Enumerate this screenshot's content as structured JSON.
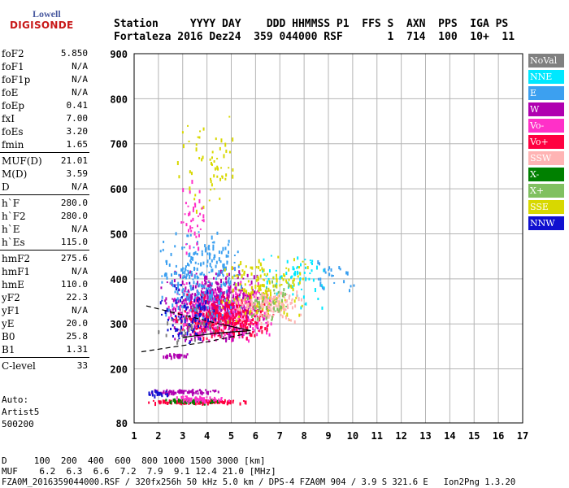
{
  "logo": {
    "line1": "Lowell",
    "line2": "DIGISONDE"
  },
  "header": {
    "labels": "Station     YYYY DAY    DDD HHMMSS P1  FFS S  AXN  PPS  IGA PS",
    "values": "Fortaleza 2016 Dez24  359 044000 RSF       1  714  100  10+  11"
  },
  "params": [
    {
      "k": "foF2",
      "v": "5.850"
    },
    {
      "k": "foF1",
      "v": "N/A"
    },
    {
      "k": "foF1p",
      "v": "N/A"
    },
    {
      "k": "foE",
      "v": "N/A"
    },
    {
      "k": "foEp",
      "v": "0.41"
    },
    {
      "k": "fxI",
      "v": "7.00"
    },
    {
      "k": "foEs",
      "v": "3.20"
    },
    {
      "k": "fmin",
      "v": "1.65"
    }
  ],
  "params2": [
    {
      "k": "MUF(D)",
      "v": "21.01"
    },
    {
      "k": "M(D)",
      "v": "3.59"
    },
    {
      "k": "D",
      "v": "N/A"
    }
  ],
  "params3": [
    {
      "k": "h`F",
      "v": "280.0"
    },
    {
      "k": "h`F2",
      "v": "280.0"
    },
    {
      "k": "h`E",
      "v": "N/A"
    },
    {
      "k": "h`Es",
      "v": "115.0"
    }
  ],
  "params4": [
    {
      "k": "hmF2",
      "v": "275.6"
    },
    {
      "k": "hmF1",
      "v": "N/A"
    },
    {
      "k": "hmE",
      "v": "110.0"
    },
    {
      "k": "yF2",
      "v": "22.3"
    },
    {
      "k": "yF1",
      "v": "N/A"
    },
    {
      "k": "yE",
      "v": "20.0"
    },
    {
      "k": "B0",
      "v": "25.8"
    },
    {
      "k": "B1",
      "v": "1.31"
    }
  ],
  "params5": [
    {
      "k": "C-level",
      "v": "33"
    }
  ],
  "auto": [
    "Auto:",
    "Artist5",
    "500200"
  ],
  "legend": [
    {
      "name": "NoVal",
      "color": "#808080"
    },
    {
      "name": "NNE",
      "color": "#00e8ff"
    },
    {
      "name": "E",
      "color": "#3ca0f0"
    },
    {
      "name": "W",
      "color": "#b000b0"
    },
    {
      "name": "Vo-",
      "color": "#ff30c8"
    },
    {
      "name": "Vo+",
      "color": "#ff0040"
    },
    {
      "name": "SSW",
      "color": "#ffb4b4"
    },
    {
      "name": "X-",
      "color": "#008000"
    },
    {
      "name": "X+",
      "color": "#80c060"
    },
    {
      "name": "SSE",
      "color": "#d8d800"
    },
    {
      "name": "NNW",
      "color": "#1010d0"
    }
  ],
  "footer": {
    "d_row": "D     100  200  400  600  800 1000 1500 3000 [km]",
    "muf_row": "MUF    6.2  6.3  6.6  7.2  7.9  9.1 12.4 21.0 [MHz]",
    "file_row": "FZA0M_2016359044000.RSF / 320fx256h 50 kHz 5.0 km / DPS-4 FZA0M 904 / 3.9 S 321.6 E   Ion2Png 1.3.20"
  },
  "chart_data": {
    "type": "scatter",
    "xlim": [
      1,
      17
    ],
    "ylim": [
      80,
      900
    ],
    "xticks": [
      1,
      2,
      3,
      4,
      5,
      6,
      7,
      8,
      9,
      10,
      11,
      12,
      13,
      14,
      15,
      16,
      17
    ],
    "yticks": [
      80,
      200,
      300,
      400,
      500,
      600,
      700,
      800,
      900
    ],
    "grid": true,
    "clusters": [
      {
        "name": "Vo-",
        "color": "#ff30c8",
        "xr": [
          2.3,
          6.8
        ],
        "yr": [
          260,
          400
        ],
        "n": 520
      },
      {
        "name": "W",
        "color": "#b000b0",
        "xr": [
          2.0,
          6.5
        ],
        "yr": [
          255,
          430
        ],
        "n": 420
      },
      {
        "name": "Vo+",
        "color": "#ff0040",
        "xr": [
          2.5,
          7.0
        ],
        "yr": [
          265,
          370
        ],
        "n": 300
      },
      {
        "name": "E",
        "color": "#3ca0f0",
        "xr": [
          2.0,
          5.5
        ],
        "yr": [
          300,
          520
        ],
        "n": 260
      },
      {
        "name": "NNE",
        "color": "#00e8ff",
        "xr": [
          6.0,
          9.0
        ],
        "yr": [
          330,
          460
        ],
        "n": 70
      },
      {
        "name": "SSE",
        "color": "#d8d800",
        "xr": [
          4.5,
          8.2
        ],
        "yr": [
          300,
          460
        ],
        "n": 180
      },
      {
        "name": "SSW",
        "color": "#ffb4b4",
        "xr": [
          5.0,
          8.0
        ],
        "yr": [
          300,
          380
        ],
        "n": 140
      },
      {
        "name": "X+",
        "color": "#80c060",
        "xr": [
          5.5,
          7.5
        ],
        "yr": [
          300,
          400
        ],
        "n": 50
      },
      {
        "name": "NNW",
        "color": "#1010d0",
        "xr": [
          1.6,
          4.5
        ],
        "yr": [
          250,
          400
        ],
        "n": 90
      },
      {
        "name": "NoVal",
        "color": "#808080",
        "xr": [
          1.5,
          5.0
        ],
        "yr": [
          260,
          340
        ],
        "n": 40
      },
      {
        "name": "Vo+",
        "color": "#ff0040",
        "xr": [
          1.4,
          5.7
        ],
        "yr": [
          125,
          134
        ],
        "n": 130
      },
      {
        "name": "W",
        "color": "#b000b0",
        "xr": [
          1.6,
          4.6
        ],
        "yr": [
          147,
          157
        ],
        "n": 70
      },
      {
        "name": "X-",
        "color": "#008000",
        "xr": [
          2.0,
          4.5
        ],
        "yr": [
          125,
          135
        ],
        "n": 45
      },
      {
        "name": "Vo-",
        "color": "#ff30c8",
        "xr": [
          2.4,
          5.0
        ],
        "yr": [
          128,
          142
        ],
        "n": 50
      },
      {
        "name": "NNW",
        "color": "#1010d0",
        "xr": [
          1.5,
          2.4
        ],
        "yr": [
          140,
          158
        ],
        "n": 20
      },
      {
        "name": "W",
        "color": "#b000b0",
        "xr": [
          2.0,
          3.4
        ],
        "yr": [
          228,
          236
        ],
        "n": 30
      },
      {
        "name": "SSE",
        "color": "#d8d800",
        "xr": [
          2.5,
          5.3
        ],
        "yr": [
          540,
          770
        ],
        "n": 60
      },
      {
        "name": "Vo-",
        "color": "#ff30c8",
        "xr": [
          2.8,
          4.0
        ],
        "yr": [
          450,
          640
        ],
        "n": 40
      },
      {
        "name": "E",
        "color": "#3ca0f0",
        "xr": [
          8.0,
          10.2
        ],
        "yr": [
          370,
          450
        ],
        "n": 25
      }
    ],
    "profile_lines": [
      {
        "style": "dashed",
        "points": [
          [
            1.5,
            340
          ],
          [
            4.5,
            300
          ]
        ]
      },
      {
        "style": "solid",
        "points": [
          [
            4.5,
            300
          ],
          [
            5.8,
            285
          ],
          [
            4.5,
            280
          ],
          [
            3.0,
            270
          ]
        ]
      },
      {
        "style": "dashed",
        "points": [
          [
            1.3,
            238
          ],
          [
            4.0,
            260
          ],
          [
            5.8,
            280
          ]
        ]
      }
    ]
  }
}
